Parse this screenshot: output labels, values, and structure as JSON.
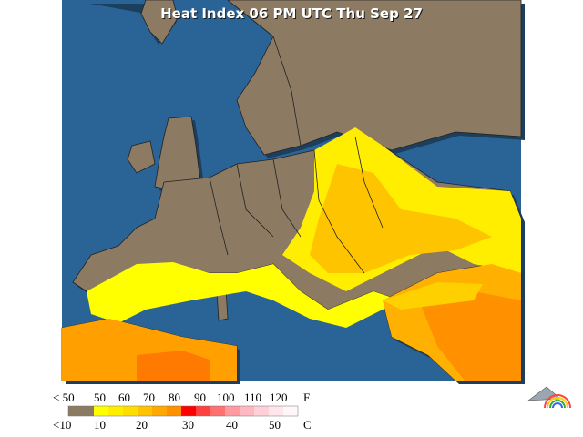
{
  "map": {
    "title": "Heat Index 06 PM UTC Thu Sep 27"
  },
  "legend": {
    "fahrenheit": [
      "< 50",
      "50",
      "60",
      "70",
      "80",
      "90",
      "100",
      "110",
      "120"
    ],
    "fahrenheit_unit": "F",
    "celsius": [
      "<10",
      "10",
      "20",
      "30",
      "40",
      "50"
    ],
    "celsius_unit": "C"
  }
}
